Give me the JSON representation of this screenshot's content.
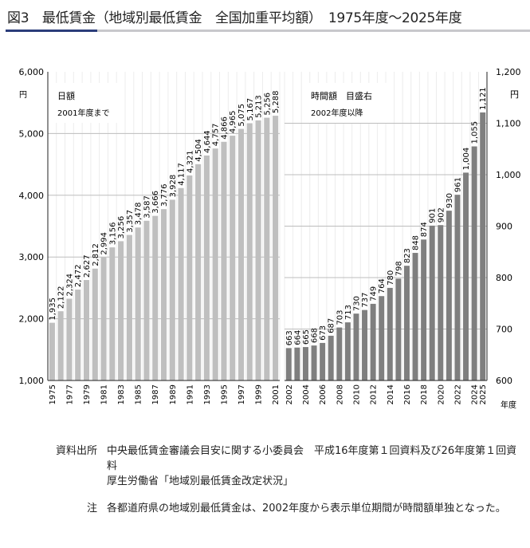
{
  "title": "図3　最低賃金（地域別最低賃金　全国加重平均額）　1975年度～2025年度",
  "chart_data": [
    {
      "type": "bar",
      "name": "daily",
      "legend": "日額",
      "legend_sub": "2001年度まで",
      "ylabel": "円",
      "ylim": [
        1000,
        6000
      ],
      "yticks": [
        "1,000",
        "2,000",
        "3,000",
        "4,000",
        "5,000",
        "6,000"
      ],
      "ytick_values": [
        1000,
        2000,
        3000,
        4000,
        5000,
        6000
      ],
      "categories": [
        "1975",
        "1976",
        "1977",
        "1978",
        "1979",
        "1980",
        "1981",
        "1982",
        "1983",
        "1984",
        "1985",
        "1986",
        "1987",
        "1988",
        "1989",
        "1990",
        "1991",
        "1992",
        "1993",
        "1994",
        "1995",
        "1996",
        "1997",
        "1998",
        "1999",
        "2000",
        "2001"
      ],
      "xtick_labels": [
        "1975",
        "1977",
        "1979",
        "1981",
        "1983",
        "1985",
        "1987",
        "1989",
        "1991",
        "1993",
        "1995",
        "1997",
        "1999",
        "2001"
      ],
      "values": [
        1935,
        2122,
        2324,
        2472,
        2627,
        2812,
        2994,
        3156,
        3256,
        3357,
        3478,
        3587,
        3666,
        3776,
        3928,
        4117,
        4321,
        4504,
        4644,
        4757,
        4866,
        4965,
        5075,
        5167,
        5213,
        5256,
        5288
      ],
      "color": "#bfbfbf"
    },
    {
      "type": "bar",
      "name": "hourly",
      "legend": "時間額　目盛右",
      "legend_sub": "2002年度以降",
      "ylabel": "円",
      "xlabel": "年度",
      "ylim": [
        600,
        1200
      ],
      "yticks": [
        "600",
        "700",
        "800",
        "900",
        "1,000",
        "1,100",
        "1,200"
      ],
      "ytick_values": [
        600,
        700,
        800,
        900,
        1000,
        1100,
        1200
      ],
      "categories": [
        "2002",
        "2003",
        "2004",
        "2005",
        "2006",
        "2007",
        "2008",
        "2009",
        "2010",
        "2011",
        "2012",
        "2013",
        "2014",
        "2015",
        "2016",
        "2017",
        "2018",
        "2019",
        "2020",
        "2021",
        "2022",
        "2023",
        "2024",
        "2025"
      ],
      "xtick_labels": [
        "2002",
        "2004",
        "2006",
        "2008",
        "2010",
        "2012",
        "2014",
        "2016",
        "2018",
        "2020",
        "2022",
        "2024",
        "2025"
      ],
      "values": [
        663,
        664,
        665,
        668,
        673,
        687,
        703,
        713,
        730,
        737,
        749,
        764,
        780,
        798,
        823,
        848,
        874,
        901,
        902,
        930,
        961,
        1004,
        1055,
        1121
      ],
      "color": "#7f7f7f"
    }
  ],
  "notes": [
    {
      "label": "資料出所",
      "text": "中央最低賃金審議会目安に関する小委員会　平成16年度第１回資料及び26年度第１回資料",
      "text2": "厚生労働省「地域別最低賃金改定状況」"
    },
    {
      "label": "注",
      "text": "各都道府県の地域別最低賃金は、2002年度から表示単位期間が時間額単独となった。"
    }
  ]
}
